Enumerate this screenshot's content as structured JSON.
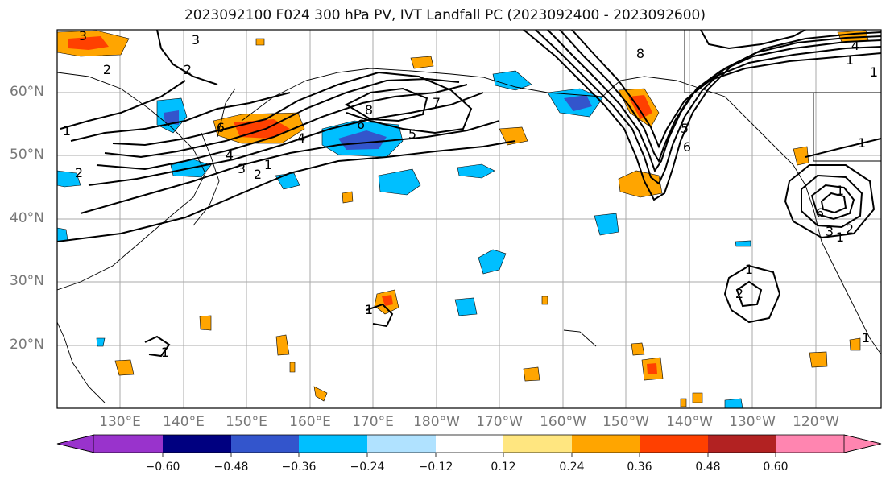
{
  "title": "2023092100 F024 300 hPa PV, IVT Landfall PC (2023092400 - 2023092600)",
  "map": {
    "lat_labels": [
      "60°N",
      "50°N",
      "40°N",
      "30°N",
      "20°N"
    ],
    "lon_labels": [
      "130°E",
      "140°E",
      "150°E",
      "160°E",
      "170°E",
      "180°W",
      "170°W",
      "160°W",
      "150°W",
      "140°W",
      "130°W",
      "120°W"
    ],
    "contour_labels": [
      "3",
      "2",
      "6",
      "4",
      "3",
      "2",
      "1",
      "8",
      "7",
      "5",
      "6",
      "4",
      "1",
      "5",
      "6",
      "8",
      "1",
      "3",
      "2",
      "4",
      "1",
      "2",
      "1",
      "6",
      "3",
      "2",
      "1",
      "2",
      "1",
      "1",
      "1",
      "1",
      "1"
    ]
  },
  "colorbar": {
    "tick_labels": [
      "−0.60",
      "−0.48",
      "−0.36",
      "−0.24",
      "−0.12",
      "0.12",
      "0.24",
      "0.36",
      "0.48",
      "0.60"
    ],
    "colors": [
      "#9933cc",
      "#000080",
      "#3355cc",
      "#00bfff",
      "#b0e2ff",
      "#ffffff",
      "#ffe680",
      "#ffa500",
      "#ff4000",
      "#b22222",
      "#ff85b0"
    ]
  }
}
